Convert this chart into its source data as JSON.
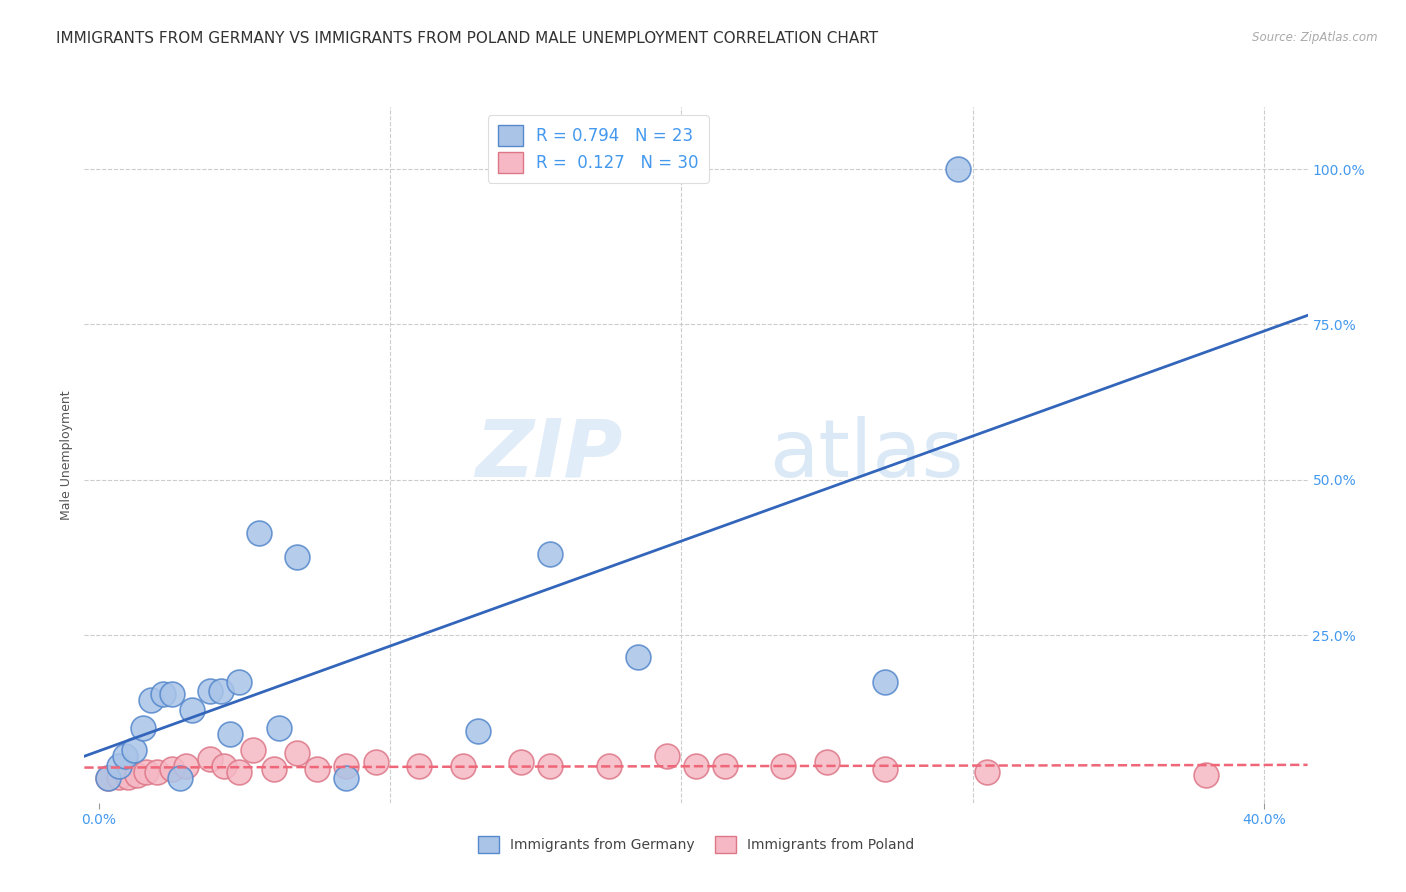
{
  "title": "IMMIGRANTS FROM GERMANY VS IMMIGRANTS FROM POLAND MALE UNEMPLOYMENT CORRELATION CHART",
  "source": "Source: ZipAtlas.com",
  "ylabel": "Male Unemployment",
  "ytick_labels": [
    "100.0%",
    "75.0%",
    "50.0%",
    "25.0%"
  ],
  "ytick_values": [
    1.0,
    0.75,
    0.5,
    0.25
  ],
  "xlim": [
    -0.005,
    0.415
  ],
  "ylim": [
    -0.02,
    1.1
  ],
  "germany_color": "#aac4e8",
  "germany_edge_color": "#5588cc",
  "germany_line_color": "#3366bb",
  "poland_color": "#f5b8c4",
  "poland_edge_color": "#dd7788",
  "poland_line_color": "#ee6677",
  "R_germany": 0.794,
  "N_germany": 23,
  "R_poland": 0.127,
  "N_poland": 30,
  "germany_x": [
    0.003,
    0.007,
    0.009,
    0.012,
    0.015,
    0.018,
    0.022,
    0.025,
    0.028,
    0.032,
    0.038,
    0.042,
    0.045,
    0.048,
    0.055,
    0.062,
    0.068,
    0.085,
    0.13,
    0.155,
    0.185,
    0.27,
    0.295
  ],
  "germany_y": [
    0.02,
    0.04,
    0.055,
    0.065,
    0.1,
    0.145,
    0.155,
    0.155,
    0.02,
    0.13,
    0.16,
    0.16,
    0.09,
    0.175,
    0.415,
    0.1,
    0.375,
    0.02,
    0.095,
    0.38,
    0.215,
    0.175,
    1.0
  ],
  "poland_x": [
    0.003,
    0.007,
    0.01,
    0.013,
    0.016,
    0.02,
    0.025,
    0.03,
    0.038,
    0.043,
    0.048,
    0.053,
    0.06,
    0.068,
    0.075,
    0.085,
    0.095,
    0.11,
    0.125,
    0.145,
    0.155,
    0.175,
    0.195,
    0.205,
    0.215,
    0.235,
    0.25,
    0.27,
    0.305,
    0.38
  ],
  "poland_y": [
    0.02,
    0.022,
    0.022,
    0.025,
    0.03,
    0.03,
    0.035,
    0.04,
    0.05,
    0.04,
    0.03,
    0.065,
    0.035,
    0.06,
    0.035,
    0.04,
    0.045,
    0.04,
    0.04,
    0.045,
    0.04,
    0.04,
    0.055,
    0.04,
    0.04,
    0.04,
    0.045,
    0.035,
    0.03,
    0.025
  ],
  "watermark_zip": "ZIP",
  "watermark_atlas": "atlas",
  "background_color": "#ffffff",
  "grid_color": "#cccccc",
  "label_color": "#4499ee",
  "title_fontsize": 11,
  "axis_label_fontsize": 9,
  "tick_fontsize": 10,
  "legend_fontsize": 12
}
